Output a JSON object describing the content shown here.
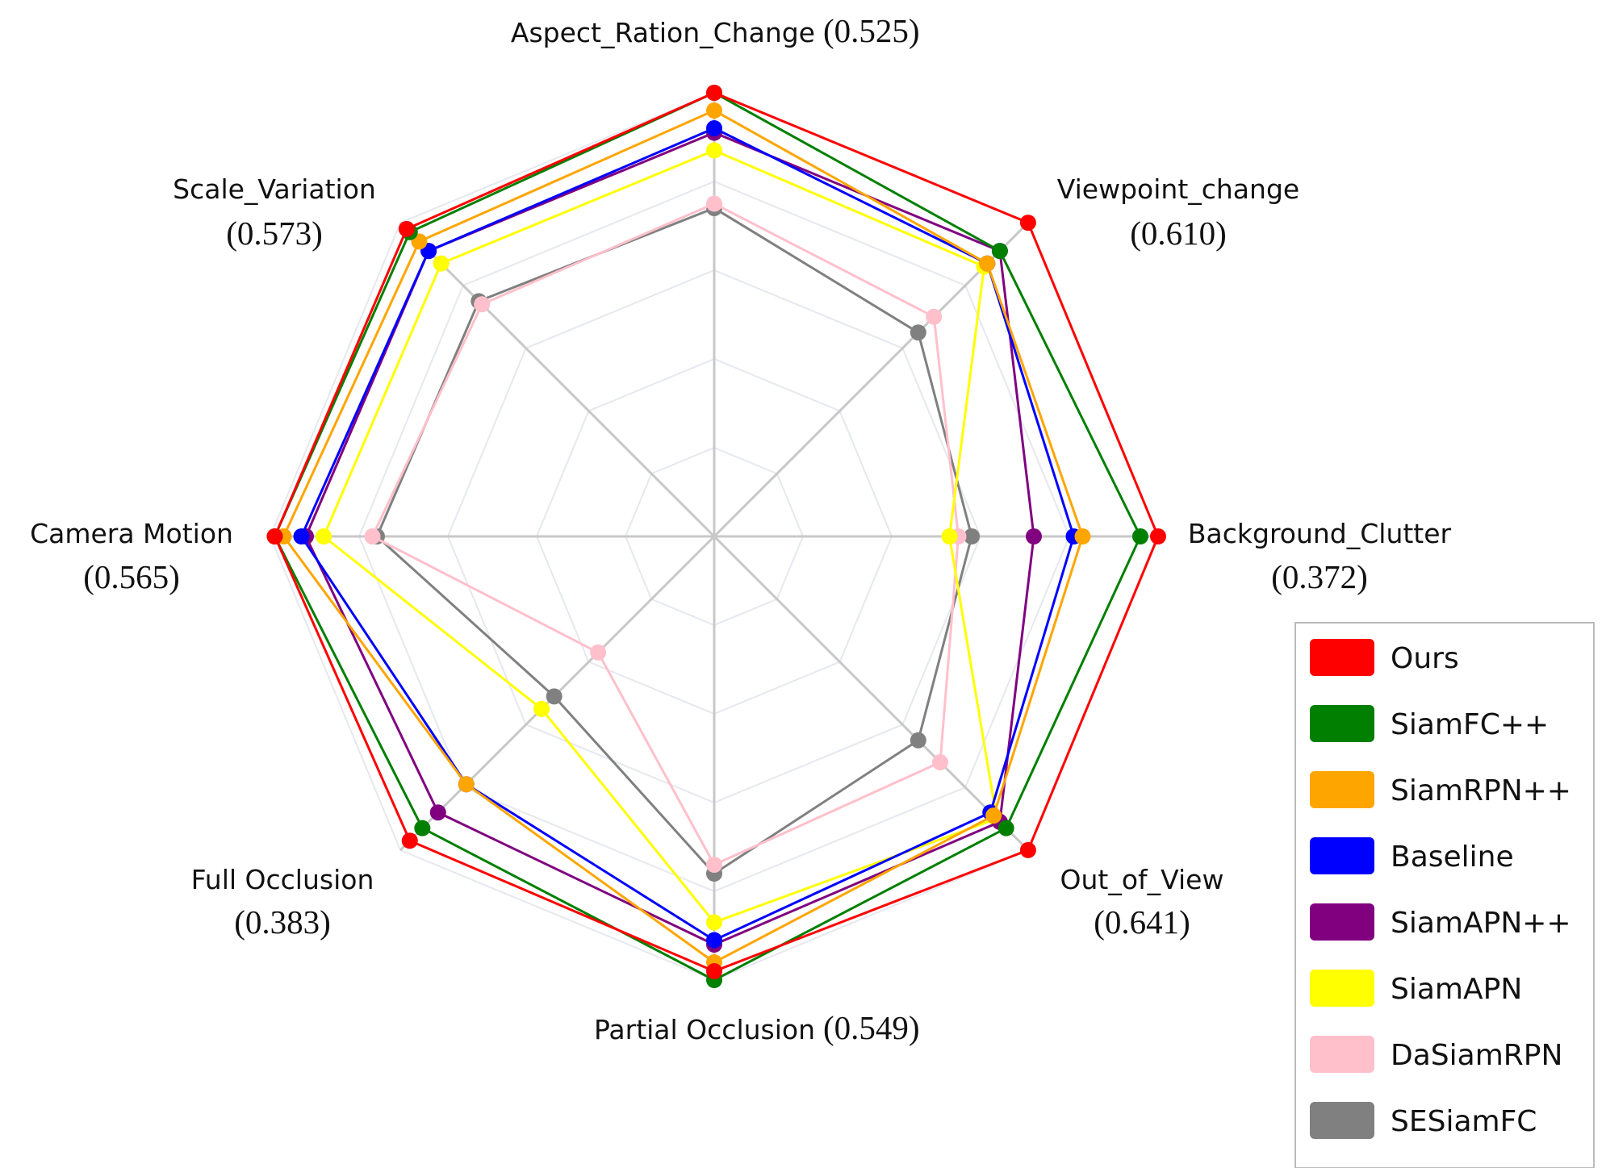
{
  "chart_data": {
    "type": "radar",
    "axes": [
      {
        "name": "Aspect_Ration_Change",
        "score": "(0.525)"
      },
      {
        "name": "Viewpoint_change",
        "score": "(0.610)"
      },
      {
        "name": "Background_Clutter",
        "score": "(0.372)"
      },
      {
        "name": "Out_of_View",
        "score": "(0.641)"
      },
      {
        "name": "Partial Occlusion",
        "score": "(0.549)"
      },
      {
        "name": "Full Occlusion",
        "score": "(0.383)"
      },
      {
        "name": "Camera Motion",
        "score": "(0.565)"
      },
      {
        "name": "Scale_Variation",
        "score": "(0.573)"
      }
    ],
    "range": [
      0,
      1
    ],
    "grid": true,
    "legend_position": "bottom-right",
    "series": [
      {
        "name": "Ours",
        "color": "#ff0000",
        "values": [
          1.0,
          1.0,
          1.0,
          1.0,
          0.98,
          0.97,
          0.99,
          0.98
        ]
      },
      {
        "name": "SiamFC++",
        "color": "#007f00",
        "values": [
          1.0,
          0.91,
          0.96,
          0.93,
          1.0,
          0.93,
          0.99,
          0.97
        ]
      },
      {
        "name": "SiamRPN++",
        "color": "#ffa500",
        "values": [
          0.96,
          0.87,
          0.83,
          0.89,
          0.96,
          0.79,
          0.97,
          0.94
        ]
      },
      {
        "name": "Baseline",
        "color": "#0000ff",
        "values": [
          0.92,
          0.87,
          0.81,
          0.88,
          0.91,
          0.79,
          0.93,
          0.91
        ]
      },
      {
        "name": "SiamAPN++",
        "color": "#800080",
        "values": [
          0.91,
          0.91,
          0.72,
          0.91,
          0.92,
          0.88,
          0.92,
          0.91
        ]
      },
      {
        "name": "SiamAPN",
        "color": "#ffff00",
        "values": [
          0.87,
          0.86,
          0.53,
          0.9,
          0.87,
          0.55,
          0.88,
          0.87
        ]
      },
      {
        "name": "DaSiamRPN",
        "color": "#ffc0cb",
        "values": [
          0.75,
          0.7,
          0.55,
          0.72,
          0.74,
          0.37,
          0.77,
          0.74
        ]
      },
      {
        "name": "SESiamFC",
        "color": "#808080",
        "values": [
          0.74,
          0.65,
          0.58,
          0.65,
          0.76,
          0.51,
          0.76,
          0.75
        ]
      }
    ]
  }
}
